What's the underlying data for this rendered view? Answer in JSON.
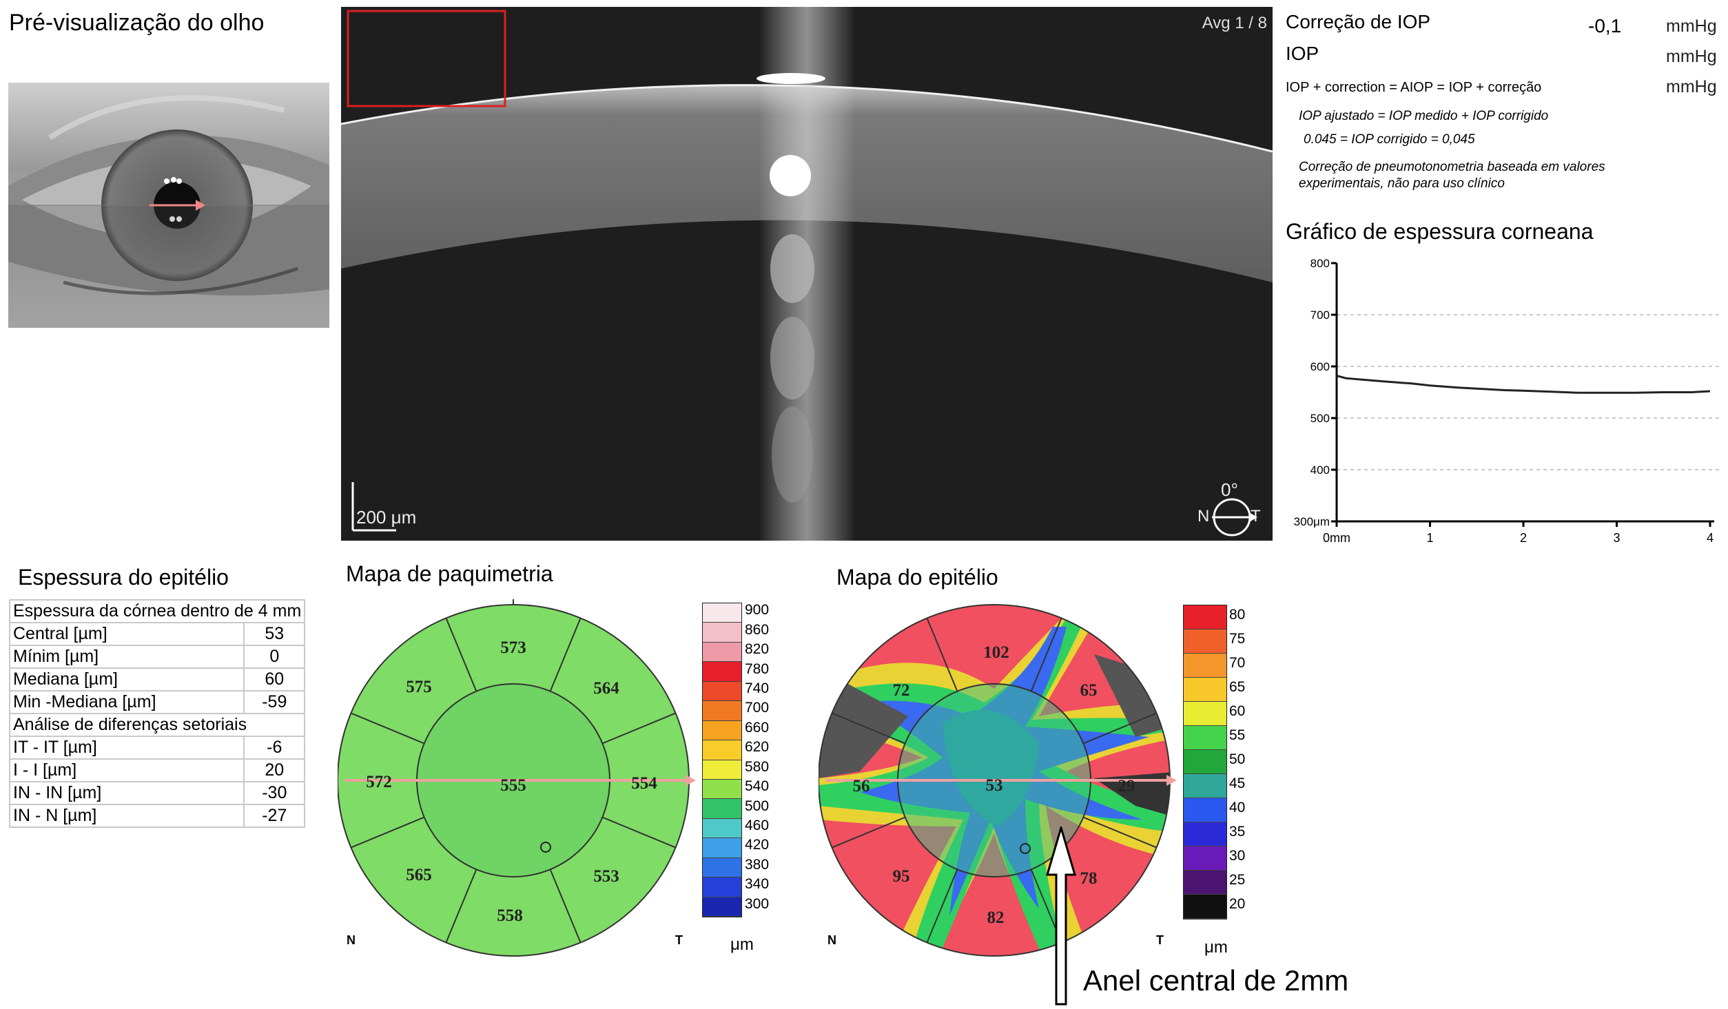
{
  "eye_preview": {
    "title": "Pré-visualização do olho"
  },
  "oct": {
    "avg_label": "Avg 1 / 8",
    "scale_bar_label": "200 μm",
    "angle_label": "0°",
    "nasal_label": "N",
    "temporal_label": "T"
  },
  "iop": {
    "correction_label": "Correção de IOP",
    "correction_value": "-0,1",
    "iop_label": "IOP",
    "formula_label": "IOP + correction = AIOP = IOP + correção",
    "unit": "mmHg",
    "note_line1": "IOP ajustado = IOP medido + IOP corrigido",
    "note_line2": "0.045 = IOP corrigido = 0,045",
    "note_line3": "Correção de pneumotonometria baseada em valores",
    "note_line4": "experimentais, não para uso clínico"
  },
  "chart_data": {
    "type": "line",
    "title": "Gráfico de espessura corneana",
    "xlabel": "",
    "ylabel": "",
    "x_ticks": [
      "0mm",
      "1",
      "2",
      "3",
      "4"
    ],
    "y_ticks": [
      "300μm",
      "400",
      "500",
      "600",
      "700",
      "800"
    ],
    "xlim": [
      0,
      4
    ],
    "ylim": [
      300,
      800
    ],
    "grid": "dashed-horizontal",
    "series": [
      {
        "x": [
          0,
          0.1,
          0.3,
          0.5,
          0.8,
          1.0,
          1.3,
          1.6,
          1.8,
          2.0,
          2.3,
          2.6,
          2.9,
          3.2,
          3.5,
          3.8,
          4.0
        ],
        "y": [
          582,
          577,
          574,
          571,
          567,
          563,
          559,
          556,
          554,
          553,
          551,
          549,
          549,
          549,
          550,
          550,
          552
        ]
      }
    ]
  },
  "epithelium": {
    "title": "Espessura do epitélio",
    "section1_header": "Espessura da córnea dentro de 4 mm",
    "rows1": [
      {
        "label": "Central [µm]",
        "value": "53"
      },
      {
        "label": "Mínim [µm]",
        "value": "0"
      },
      {
        "label": "Mediana [µm]",
        "value": "60"
      },
      {
        "label": "Min -Mediana  [µm]",
        "value": "-59"
      }
    ],
    "section2_header": "Análise de diferenças setoriais",
    "rows2": [
      {
        "label": "IT - IT [µm]",
        "value": "-6"
      },
      {
        "label": "I - I [µm]",
        "value": "20"
      },
      {
        "label": "IN - IN  [µm]",
        "value": "-30"
      },
      {
        "label": "IN - N [µm]",
        "value": "-27"
      }
    ]
  },
  "pachymetry_map": {
    "title": "Mapa de paquimetria",
    "center": "555",
    "top": "573",
    "upper_right": "564",
    "right": "554",
    "lower_right": "553",
    "bottom": "558",
    "lower_left": "565",
    "left": "572",
    "upper_left": "575",
    "nasal_label": "N",
    "temporal_label": "T",
    "unit": "μm",
    "scale": [
      "900",
      "860",
      "820",
      "780",
      "740",
      "700",
      "660",
      "620",
      "580",
      "540",
      "500",
      "460",
      "420",
      "380",
      "340",
      "300"
    ],
    "scale_colors": [
      "#f7e6ea",
      "#f3bfc8",
      "#ef9aa8",
      "#e8202a",
      "#ee4a2a",
      "#f07a22",
      "#f6a321",
      "#f8cd2a",
      "#f0ec3a",
      "#8fe04a",
      "#33c46a",
      "#4fc8c8",
      "#3ea0e8",
      "#2e72e8",
      "#2540d8",
      "#1a26b0"
    ]
  },
  "epithelium_map": {
    "title": "Mapa do epitélio",
    "center": "53",
    "top": "102",
    "upper_right": "65",
    "right": "29",
    "lower_right": "78",
    "bottom": "82",
    "lower_left": "95",
    "left": "56",
    "upper_left": "72",
    "nasal_label": "N",
    "temporal_label": "T",
    "unit": "μm",
    "scale": [
      "80",
      "75",
      "70",
      "65",
      "60",
      "55",
      "50",
      "45",
      "40",
      "35",
      "30",
      "25",
      "20"
    ],
    "scale_colors": [
      "#e8202a",
      "#f0612a",
      "#f5962a",
      "#f8c82a",
      "#e8ec32",
      "#44d24a",
      "#22a83a",
      "#2fa89a",
      "#2a58f0",
      "#2b2ad8",
      "#6a1ab8",
      "#4a1470",
      "#101010"
    ]
  },
  "annotation": {
    "label": "Anel central de 2mm"
  }
}
